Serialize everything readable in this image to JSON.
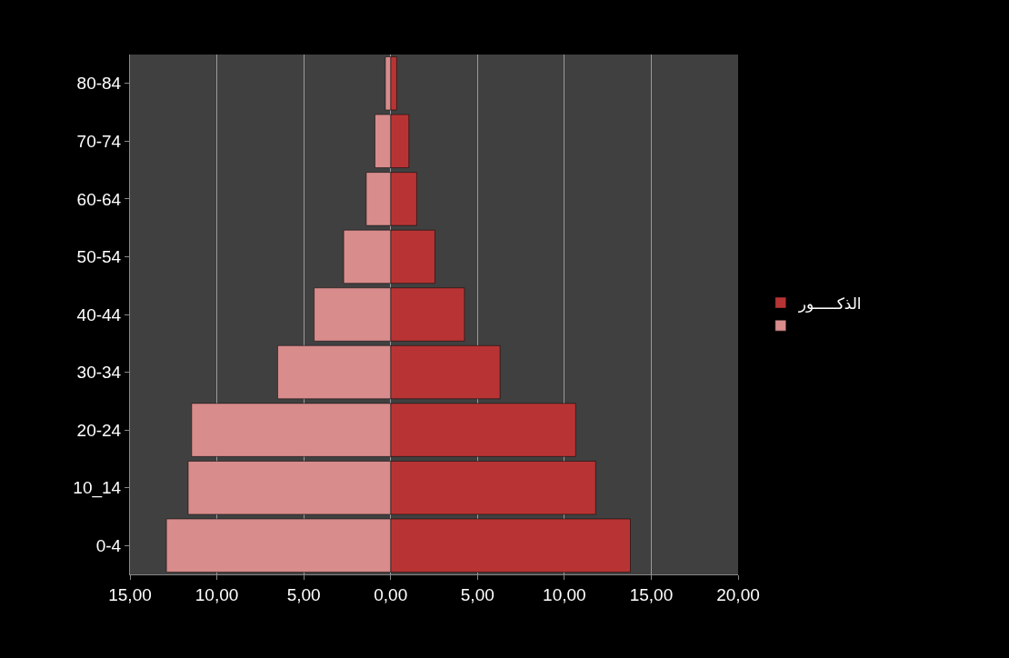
{
  "chart_data": {
    "type": "bar",
    "orientation": "horizontal",
    "stacked": true,
    "categories": [
      "80-84",
      "70-74",
      "60-64",
      "50-54",
      "40-44",
      "30-34",
      "20-24",
      "10_14",
      "0-4"
    ],
    "series": [
      {
        "name": "الذكـــــور",
        "color": "#b83434",
        "values": [
          0.35,
          1.05,
          1.5,
          2.55,
          4.25,
          6.3,
          10.65,
          11.8,
          13.8
        ]
      },
      {
        "color": "#d98c8c",
        "values": [
          -0.3,
          -0.9,
          -1.4,
          -2.7,
          -4.4,
          -6.5,
          -11.45,
          -11.65,
          -12.9
        ]
      }
    ],
    "xlim": [
      -15,
      20
    ],
    "xticks": [
      {
        "value": -15,
        "label": "15,00"
      },
      {
        "value": -10,
        "label": "10,00"
      },
      {
        "value": -5,
        "label": "5,00"
      },
      {
        "value": 0,
        "label": "0,00"
      },
      {
        "value": 5,
        "label": "5,00"
      },
      {
        "value": 10,
        "label": "10,00"
      },
      {
        "value": 15,
        "label": "15,00"
      },
      {
        "value": 20,
        "label": "20,00"
      }
    ],
    "grid": "x",
    "legend": "right"
  }
}
